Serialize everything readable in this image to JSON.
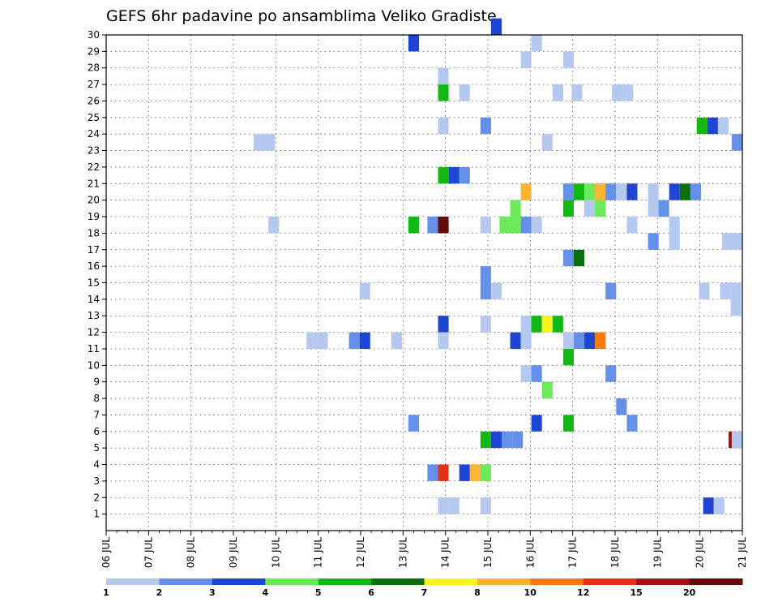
{
  "chart_data": {
    "type": "heatmap",
    "title": "GEFS 6hr padavine po ansamblima Veliko Gradiste",
    "xlabel": "",
    "ylabel": "",
    "x_ticks": [
      "06 JUL",
      "07 JUL",
      "08 JUL",
      "09 JUL",
      "10 JUL",
      "11 JUL",
      "12 JUL",
      "13 JUL",
      "14 JUL",
      "15 JUL",
      "16 JUL",
      "17 JUL",
      "18 JUL",
      "19 JUL",
      "20 JUL",
      "21 JUL"
    ],
    "y_ticks": [
      "1",
      "2",
      "3",
      "4",
      "5",
      "6",
      "7",
      "8",
      "9",
      "10",
      "11",
      "12",
      "13",
      "14",
      "15",
      "16",
      "17",
      "18",
      "19",
      "20",
      "21",
      "22",
      "23",
      "24",
      "25",
      "26",
      "27",
      "28",
      "29",
      "30"
    ],
    "xlim_days": [
      0,
      15
    ],
    "ylim_members": [
      0,
      30
    ],
    "grid": true,
    "legend": {
      "placement": "bottom",
      "labels": [
        "1",
        "2",
        "3",
        "4",
        "5",
        "6",
        "7",
        "8",
        "10",
        "12",
        "15",
        "20"
      ],
      "colors": [
        "#b4c8f0",
        "#6490ea",
        "#1e46d2",
        "#6cea5a",
        "#14b814",
        "#0a6e0a",
        "#faf41e",
        "#f8b432",
        "#f87814",
        "#e03214",
        "#a01414",
        "#640a0a"
      ]
    },
    "cells": [
      {
        "d": 9.2,
        "m": 30,
        "c": 3
      },
      {
        "d": 7.25,
        "m": 29,
        "c": 3
      },
      {
        "d": 10.15,
        "m": 29,
        "c": 1
      },
      {
        "d": 9.9,
        "m": 28,
        "c": 1
      },
      {
        "d": 10.9,
        "m": 28,
        "c": 1
      },
      {
        "d": 7.95,
        "m": 27,
        "c": 1
      },
      {
        "d": 7.95,
        "m": 26,
        "c": 5
      },
      {
        "d": 8.45,
        "m": 26,
        "c": 1
      },
      {
        "d": 10.65,
        "m": 26,
        "c": 1
      },
      {
        "d": 11.1,
        "m": 26,
        "c": 1
      },
      {
        "d": 12.05,
        "m": 26,
        "c": 1
      },
      {
        "d": 12.3,
        "m": 26,
        "c": 1
      },
      {
        "d": 7.95,
        "m": 24,
        "c": 1
      },
      {
        "d": 8.95,
        "m": 24,
        "c": 2
      },
      {
        "d": 14.05,
        "m": 24,
        "c": 5
      },
      {
        "d": 14.3,
        "m": 24,
        "c": 3
      },
      {
        "d": 14.55,
        "m": 24,
        "c": 1
      },
      {
        "d": 3.6,
        "m": 23,
        "c": 1
      },
      {
        "d": 3.85,
        "m": 23,
        "c": 1
      },
      {
        "d": 10.4,
        "m": 23,
        "c": 1
      },
      {
        "d": 14.95,
        "m": 23,
        "c": 2
      },
      {
        "d": 7.95,
        "m": 21,
        "c": 5
      },
      {
        "d": 8.2,
        "m": 21,
        "c": 3
      },
      {
        "d": 8.45,
        "m": 21,
        "c": 2
      },
      {
        "d": 9.9,
        "m": 20,
        "c": 8
      },
      {
        "d": 10.9,
        "m": 20,
        "c": 2
      },
      {
        "d": 11.15,
        "m": 20,
        "c": 5
      },
      {
        "d": 11.4,
        "m": 20,
        "c": 4
      },
      {
        "d": 11.65,
        "m": 20,
        "c": 8
      },
      {
        "d": 11.9,
        "m": 20,
        "c": 2
      },
      {
        "d": 12.15,
        "m": 20,
        "c": 1
      },
      {
        "d": 12.4,
        "m": 20,
        "c": 3
      },
      {
        "d": 12.9,
        "m": 20,
        "c": 1
      },
      {
        "d": 13.4,
        "m": 20,
        "c": 3
      },
      {
        "d": 13.65,
        "m": 20,
        "c": 6
      },
      {
        "d": 13.9,
        "m": 20,
        "c": 2
      },
      {
        "d": 9.65,
        "m": 19,
        "c": 4
      },
      {
        "d": 10.9,
        "m": 19,
        "c": 5
      },
      {
        "d": 11.4,
        "m": 19,
        "c": 1
      },
      {
        "d": 11.65,
        "m": 19,
        "c": 4
      },
      {
        "d": 12.9,
        "m": 19,
        "c": 1
      },
      {
        "d": 13.15,
        "m": 19,
        "c": 2
      },
      {
        "d": 3.95,
        "m": 18,
        "c": 1
      },
      {
        "d": 7.25,
        "m": 18,
        "c": 5
      },
      {
        "d": 7.7,
        "m": 18,
        "c": 2
      },
      {
        "d": 7.95,
        "m": 18,
        "c": 12
      },
      {
        "d": 8.95,
        "m": 18,
        "c": 1
      },
      {
        "d": 9.4,
        "m": 18,
        "c": 4
      },
      {
        "d": 9.65,
        "m": 18,
        "c": 4
      },
      {
        "d": 9.9,
        "m": 18,
        "c": 2
      },
      {
        "d": 10.15,
        "m": 18,
        "c": 1
      },
      {
        "d": 12.4,
        "m": 18,
        "c": 1
      },
      {
        "d": 13.4,
        "m": 18,
        "c": 1
      },
      {
        "d": 12.9,
        "m": 17,
        "c": 2
      },
      {
        "d": 13.4,
        "m": 17,
        "c": 1
      },
      {
        "d": 14.65,
        "m": 17,
        "c": 1
      },
      {
        "d": 14.9,
        "m": 17,
        "c": 1
      },
      {
        "d": 10.9,
        "m": 16,
        "c": 2
      },
      {
        "d": 11.15,
        "m": 16,
        "c": 6
      },
      {
        "d": 8.95,
        "m": 15,
        "c": 2
      },
      {
        "d": 6.1,
        "m": 14,
        "c": 1
      },
      {
        "d": 8.95,
        "m": 14,
        "c": 2
      },
      {
        "d": 9.2,
        "m": 14,
        "c": 1
      },
      {
        "d": 11.9,
        "m": 14,
        "c": 2
      },
      {
        "d": 14.1,
        "m": 14,
        "c": 1
      },
      {
        "d": 14.6,
        "m": 14,
        "c": 1
      },
      {
        "d": 14.85,
        "m": 14,
        "c": 1
      },
      {
        "d": 14.85,
        "m": 13,
        "c": 1
      },
      {
        "d": 7.95,
        "m": 12,
        "c": 3
      },
      {
        "d": 8.95,
        "m": 12,
        "c": 1
      },
      {
        "d": 9.9,
        "m": 12,
        "c": 1
      },
      {
        "d": 10.15,
        "m": 12,
        "c": 5
      },
      {
        "d": 10.4,
        "m": 12,
        "c": 7
      },
      {
        "d": 10.65,
        "m": 12,
        "c": 5
      },
      {
        "d": 4.85,
        "m": 11,
        "c": 1
      },
      {
        "d": 5.1,
        "m": 11,
        "c": 1
      },
      {
        "d": 5.85,
        "m": 11,
        "c": 2
      },
      {
        "d": 6.1,
        "m": 11,
        "c": 3
      },
      {
        "d": 6.85,
        "m": 11,
        "c": 1
      },
      {
        "d": 7.95,
        "m": 11,
        "c": 1
      },
      {
        "d": 9.65,
        "m": 11,
        "c": 3
      },
      {
        "d": 9.9,
        "m": 11,
        "c": 1
      },
      {
        "d": 10.9,
        "m": 11,
        "c": 1
      },
      {
        "d": 11.15,
        "m": 11,
        "c": 2
      },
      {
        "d": 11.4,
        "m": 11,
        "c": 3
      },
      {
        "d": 11.65,
        "m": 11,
        "c": 9
      },
      {
        "d": 10.9,
        "m": 10,
        "c": 5
      },
      {
        "d": 9.9,
        "m": 9,
        "c": 1
      },
      {
        "d": 10.15,
        "m": 9,
        "c": 2
      },
      {
        "d": 11.9,
        "m": 9,
        "c": 2
      },
      {
        "d": 10.4,
        "m": 8,
        "c": 4
      },
      {
        "d": 12.15,
        "m": 7,
        "c": 2
      },
      {
        "d": 7.25,
        "m": 6,
        "c": 2
      },
      {
        "d": 10.15,
        "m": 6,
        "c": 3
      },
      {
        "d": 10.9,
        "m": 6,
        "c": 5
      },
      {
        "d": 12.4,
        "m": 6,
        "c": 2
      },
      {
        "d": 8.95,
        "m": 5,
        "c": 5
      },
      {
        "d": 9.2,
        "m": 5,
        "c": 3
      },
      {
        "d": 9.45,
        "m": 5,
        "c": 2
      },
      {
        "d": 9.7,
        "m": 5,
        "c": 2
      },
      {
        "d": 14.8,
        "m": 5,
        "c": 11
      },
      {
        "d": 15.0,
        "m": 5,
        "c": 1
      },
      {
        "d": 7.7,
        "m": 3,
        "c": 2
      },
      {
        "d": 7.95,
        "m": 3,
        "c": 10
      },
      {
        "d": 8.45,
        "m": 3,
        "c": 3
      },
      {
        "d": 8.7,
        "m": 3,
        "c": 8
      },
      {
        "d": 8.95,
        "m": 3,
        "c": 4
      },
      {
        "d": 7.95,
        "m": 1,
        "c": 1
      },
      {
        "d": 8.2,
        "m": 1,
        "c": 1
      },
      {
        "d": 8.95,
        "m": 1,
        "c": 1
      },
      {
        "d": 14.2,
        "m": 1,
        "c": 3
      },
      {
        "d": 14.45,
        "m": 1,
        "c": 1
      }
    ]
  }
}
